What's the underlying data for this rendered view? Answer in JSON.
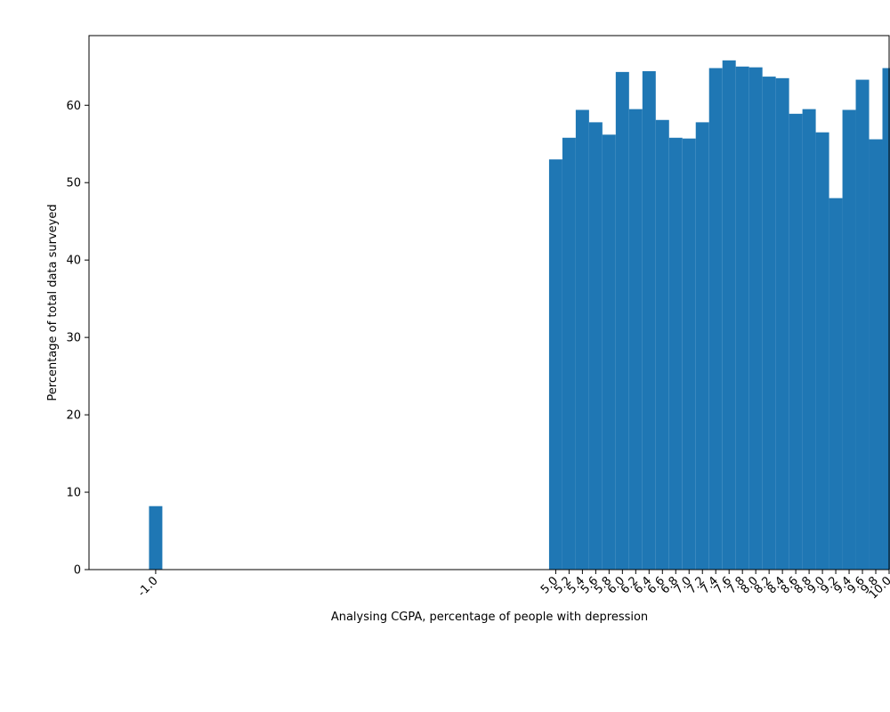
{
  "chart_data": {
    "type": "bar",
    "title": "",
    "xlabel": "Analysing CGPA, percentage of people with depression",
    "ylabel": "Percentage of total data surveyed",
    "xlim": [
      -2.0,
      10.0
    ],
    "ylim": [
      0,
      69
    ],
    "y_ticks": [
      0,
      10,
      20,
      30,
      40,
      50,
      60
    ],
    "bar_width": 0.2,
    "bar_color": "#1f77b4",
    "categories": [
      "-1.0",
      "5.0",
      "5.2",
      "5.4",
      "5.6",
      "5.8",
      "6.0",
      "6.2",
      "6.4",
      "6.6",
      "6.8",
      "7.0",
      "7.2",
      "7.4",
      "7.6",
      "7.8",
      "8.0",
      "8.2",
      "8.4",
      "8.6",
      "8.8",
      "9.0",
      "9.2",
      "9.4",
      "9.6",
      "9.8",
      "10.0"
    ],
    "x": [
      -1.0,
      5.0,
      5.2,
      5.4,
      5.6,
      5.8,
      6.0,
      6.2,
      6.4,
      6.6,
      6.8,
      7.0,
      7.2,
      7.4,
      7.6,
      7.8,
      8.0,
      8.2,
      8.4,
      8.6,
      8.8,
      9.0,
      9.2,
      9.4,
      9.6,
      9.8,
      10.0
    ],
    "values": [
      8.2,
      53.0,
      55.8,
      59.4,
      57.8,
      56.2,
      64.3,
      59.5,
      64.4,
      58.1,
      55.8,
      55.7,
      57.8,
      64.8,
      65.8,
      65.0,
      64.9,
      63.7,
      63.5,
      58.9,
      59.5,
      56.5,
      48.0,
      59.4,
      63.3,
      55.6,
      64.8
    ],
    "grid": false,
    "legend": "none"
  }
}
